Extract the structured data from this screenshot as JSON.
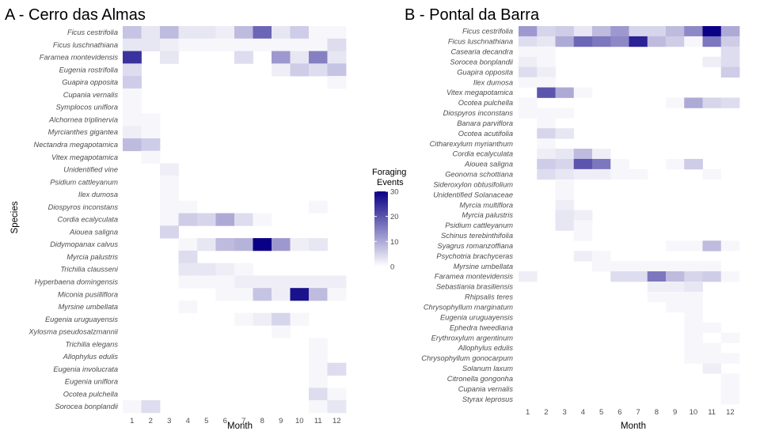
{
  "legend": {
    "title_line1": "Foraging",
    "title_line2": "Events",
    "ticks": [
      0,
      10,
      20,
      30
    ],
    "max": 30,
    "low_color": "#ffffff",
    "high_color": "#0a0085"
  },
  "chart_data": [
    {
      "type": "heatmap",
      "title": "A - Cerro das Almas",
      "xlabel": "Month",
      "ylabel": "Species",
      "x": [
        1,
        2,
        3,
        4,
        5,
        6,
        7,
        8,
        9,
        10,
        11,
        12
      ],
      "color_range": [
        0,
        30
      ],
      "rows": [
        {
          "name": "Ficus cestrifolia",
          "values": [
            7,
            3,
            8,
            3,
            3,
            2,
            8,
            18,
            3,
            6,
            1,
            1
          ]
        },
        {
          "name": "Ficus luschnathiana",
          "values": [
            3,
            3,
            2,
            1,
            1,
            1,
            1,
            1,
            1,
            1,
            1,
            4
          ]
        },
        {
          "name": "Faramea montevidensis",
          "values": [
            24,
            0,
            3,
            0,
            0,
            0,
            4,
            0,
            12,
            3,
            15,
            3
          ]
        },
        {
          "name": "Eugenia rostrifolia",
          "values": [
            4,
            0,
            0,
            0,
            0,
            0,
            0,
            0,
            2,
            6,
            4,
            7
          ]
        },
        {
          "name": "Guapira opposita",
          "values": [
            6,
            0,
            0,
            0,
            0,
            0,
            0,
            0,
            0,
            0,
            0,
            1
          ]
        },
        {
          "name": "Cupania vernalis",
          "values": [
            1,
            0,
            0,
            0,
            0,
            0,
            0,
            0,
            0,
            0,
            0,
            0
          ]
        },
        {
          "name": "Symplocos uniflora",
          "values": [
            1,
            0,
            0,
            0,
            0,
            0,
            0,
            0,
            0,
            0,
            0,
            0
          ]
        },
        {
          "name": "Alchornea triplinervia",
          "values": [
            1,
            1,
            0,
            0,
            0,
            0,
            0,
            0,
            0,
            0,
            0,
            0
          ]
        },
        {
          "name": "Myrcianthes gigantea",
          "values": [
            2,
            1,
            0,
            0,
            0,
            0,
            0,
            0,
            0,
            0,
            0,
            0
          ]
        },
        {
          "name": "Nectandra megapotamica",
          "values": [
            8,
            6,
            0,
            0,
            0,
            0,
            0,
            0,
            0,
            0,
            0,
            0
          ]
        },
        {
          "name": "Vitex megapotamica",
          "values": [
            0,
            1,
            0,
            0,
            0,
            0,
            0,
            0,
            0,
            0,
            0,
            0
          ]
        },
        {
          "name": "Unidentified vine",
          "values": [
            0,
            0,
            2,
            0,
            0,
            0,
            0,
            0,
            0,
            0,
            0,
            0
          ]
        },
        {
          "name": "Psidium cattleyanum",
          "values": [
            0,
            0,
            1,
            0,
            0,
            0,
            0,
            0,
            0,
            0,
            0,
            0
          ]
        },
        {
          "name": "Ilex dumosa",
          "values": [
            0,
            0,
            1,
            0,
            0,
            0,
            0,
            0,
            0,
            0,
            0,
            0
          ]
        },
        {
          "name": "Diospyros inconstans",
          "values": [
            0,
            0,
            1,
            1,
            0,
            0,
            0,
            0,
            0,
            0,
            1,
            0
          ]
        },
        {
          "name": "Cordia ecalyculata",
          "values": [
            0,
            0,
            1,
            6,
            5,
            10,
            4,
            1,
            0,
            0,
            0,
            0
          ]
        },
        {
          "name": "Aiouea saligna",
          "values": [
            0,
            0,
            5,
            0,
            0,
            0,
            0,
            0,
            0,
            0,
            0,
            0
          ]
        },
        {
          "name": "Didymopanax calvus",
          "values": [
            0,
            0,
            0,
            1,
            3,
            8,
            9,
            30,
            12,
            2,
            3,
            0
          ]
        },
        {
          "name": "Myrcia palustris",
          "values": [
            0,
            0,
            0,
            4,
            0,
            0,
            0,
            0,
            0,
            0,
            0,
            0
          ]
        },
        {
          "name": "Trichilia clausseni",
          "values": [
            0,
            0,
            0,
            3,
            3,
            2,
            1,
            0,
            0,
            0,
            0,
            0
          ]
        },
        {
          "name": "Hyperbaena domingensis",
          "values": [
            0,
            0,
            0,
            1,
            1,
            1,
            2,
            2,
            2,
            2,
            2,
            2
          ]
        },
        {
          "name": "Miconia pusilliflora",
          "values": [
            0,
            0,
            0,
            0,
            0,
            1,
            1,
            7,
            2,
            28,
            8,
            1
          ]
        },
        {
          "name": "Myrsine umbellata",
          "values": [
            0,
            0,
            0,
            1,
            0,
            0,
            0,
            0,
            0,
            0,
            0,
            0
          ]
        },
        {
          "name": "Eugenia uruguayensis",
          "values": [
            0,
            0,
            0,
            0,
            0,
            0,
            1,
            2,
            5,
            1,
            0,
            0
          ]
        },
        {
          "name": "Xylosma pseudosalzmannii",
          "values": [
            0,
            0,
            0,
            0,
            0,
            0,
            0,
            0,
            1,
            0,
            0,
            0
          ]
        },
        {
          "name": "Trichilia elegans",
          "values": [
            0,
            0,
            0,
            0,
            0,
            0,
            0,
            0,
            0,
            0,
            1,
            0
          ]
        },
        {
          "name": "Allophylus edulis",
          "values": [
            0,
            0,
            0,
            0,
            0,
            0,
            0,
            0,
            0,
            0,
            1,
            0
          ]
        },
        {
          "name": "Eugenia involucrata",
          "values": [
            0,
            0,
            0,
            0,
            0,
            0,
            0,
            0,
            0,
            0,
            1,
            4
          ]
        },
        {
          "name": "Eugenia uniflora",
          "values": [
            0,
            0,
            0,
            0,
            0,
            0,
            0,
            0,
            0,
            0,
            1,
            0
          ]
        },
        {
          "name": "Ocotea pulchella",
          "values": [
            0,
            0,
            0,
            0,
            0,
            0,
            0,
            0,
            0,
            0,
            4,
            1
          ]
        },
        {
          "name": "Sorocea bonplandii",
          "values": [
            1,
            4,
            0,
            0,
            0,
            0,
            0,
            0,
            0,
            0,
            1,
            3
          ]
        }
      ]
    },
    {
      "type": "heatmap",
      "title": "B - Pontal da Barra",
      "xlabel": "Month",
      "ylabel": "",
      "x": [
        1,
        2,
        3,
        4,
        5,
        6,
        7,
        8,
        9,
        10,
        11,
        12
      ],
      "color_range": [
        0,
        30
      ],
      "rows": [
        {
          "name": "Ficus cestrifolia",
          "values": [
            12,
            5,
            6,
            3,
            8,
            12,
            5,
            5,
            8,
            14,
            30,
            10
          ]
        },
        {
          "name": "Ficus luschnathiana",
          "values": [
            4,
            3,
            10,
            18,
            16,
            14,
            26,
            8,
            6,
            1,
            16,
            6
          ]
        },
        {
          "name": "Casearia decandra",
          "values": [
            1,
            1,
            0,
            0,
            0,
            0,
            0,
            0,
            0,
            0,
            0,
            4
          ]
        },
        {
          "name": "Sorocea bonplandii",
          "values": [
            2,
            1,
            0,
            0,
            0,
            0,
            0,
            0,
            0,
            0,
            2,
            4
          ]
        },
        {
          "name": "Guapira opposita",
          "values": [
            4,
            2,
            0,
            0,
            0,
            0,
            0,
            0,
            0,
            0,
            0,
            6
          ]
        },
        {
          "name": "Ilex dumosa",
          "values": [
            1,
            1,
            0,
            0,
            0,
            0,
            0,
            0,
            0,
            0,
            0,
            0
          ]
        },
        {
          "name": "Vitex megapotamica",
          "values": [
            0,
            20,
            10,
            1,
            0,
            0,
            0,
            0,
            0,
            0,
            0,
            0
          ]
        },
        {
          "name": "Ocotea pulchella",
          "values": [
            1,
            0,
            0,
            0,
            0,
            0,
            0,
            0,
            1,
            10,
            5,
            4
          ]
        },
        {
          "name": "Diospyros inconstans",
          "values": [
            1,
            1,
            1,
            0,
            0,
            0,
            0,
            0,
            0,
            0,
            0,
            0
          ]
        },
        {
          "name": "Banara parviflora",
          "values": [
            0,
            1,
            0,
            0,
            0,
            0,
            0,
            0,
            0,
            0,
            0,
            0
          ]
        },
        {
          "name": "Ocotea acutifolia",
          "values": [
            0,
            5,
            3,
            0,
            0,
            0,
            0,
            0,
            0,
            0,
            0,
            0
          ]
        },
        {
          "name": "Citharexylum myrianthum",
          "values": [
            0,
            1,
            0,
            0,
            0,
            0,
            0,
            0,
            0,
            0,
            0,
            0
          ]
        },
        {
          "name": "Cordia ecalyculata",
          "values": [
            0,
            2,
            3,
            8,
            2,
            0,
            0,
            0,
            0,
            0,
            0,
            0
          ]
        },
        {
          "name": "Aiouea saligna",
          "values": [
            0,
            6,
            5,
            20,
            16,
            1,
            0,
            0,
            1,
            6,
            0,
            0
          ]
        },
        {
          "name": "Geonoma schottiana",
          "values": [
            0,
            4,
            3,
            2,
            2,
            1,
            1,
            0,
            0,
            0,
            1,
            0
          ]
        },
        {
          "name": "Sideroxylon obtusifolium",
          "values": [
            0,
            0,
            1,
            0,
            0,
            0,
            0,
            0,
            0,
            0,
            0,
            0
          ]
        },
        {
          "name": "Unidentified Solanaceae",
          "values": [
            0,
            0,
            1,
            0,
            0,
            0,
            0,
            0,
            0,
            0,
            0,
            0
          ]
        },
        {
          "name": "Myrcia multiflora",
          "values": [
            0,
            0,
            2,
            0,
            0,
            0,
            0,
            0,
            0,
            0,
            0,
            0
          ]
        },
        {
          "name": "Myrcia palustris",
          "values": [
            0,
            0,
            3,
            2,
            0,
            0,
            0,
            0,
            0,
            0,
            0,
            0
          ]
        },
        {
          "name": "Psidium cattleyanum",
          "values": [
            0,
            0,
            3,
            1,
            0,
            0,
            0,
            0,
            0,
            0,
            0,
            0
          ]
        },
        {
          "name": "Schinus terebinthifolia",
          "values": [
            0,
            0,
            0,
            1,
            0,
            0,
            0,
            0,
            0,
            0,
            0,
            0
          ]
        },
        {
          "name": "Syagrus romanzoffiana",
          "values": [
            0,
            0,
            0,
            0,
            0,
            0,
            0,
            0,
            1,
            1,
            8,
            1
          ]
        },
        {
          "name": "Psychotria brachyceras",
          "values": [
            0,
            0,
            0,
            2,
            1,
            0,
            0,
            0,
            0,
            0,
            0,
            0
          ]
        },
        {
          "name": "Myrsine umbellata",
          "values": [
            0,
            0,
            0,
            0,
            1,
            1,
            1,
            1,
            1,
            1,
            1,
            0
          ]
        },
        {
          "name": "Faramea montevidensis",
          "values": [
            2,
            0,
            0,
            0,
            0,
            4,
            4,
            16,
            8,
            5,
            6,
            1
          ]
        },
        {
          "name": "Sebastiania brasiliensis",
          "values": [
            0,
            0,
            0,
            0,
            0,
            0,
            0,
            2,
            2,
            3,
            0,
            0
          ]
        },
        {
          "name": "Rhipsalis teres",
          "values": [
            0,
            0,
            0,
            0,
            0,
            0,
            0,
            1,
            1,
            1,
            0,
            0
          ]
        },
        {
          "name": "Chrysophyllum marginatum",
          "values": [
            0,
            0,
            0,
            0,
            0,
            0,
            0,
            0,
            1,
            1,
            0,
            0
          ]
        },
        {
          "name": "Eugenia uruguayensis",
          "values": [
            0,
            0,
            0,
            0,
            0,
            0,
            0,
            0,
            0,
            1,
            0,
            0
          ]
        },
        {
          "name": "Ephedra tweediana",
          "values": [
            0,
            0,
            0,
            0,
            0,
            0,
            0,
            0,
            0,
            1,
            1,
            0
          ]
        },
        {
          "name": "Erythroxylum argentinum",
          "values": [
            0,
            0,
            0,
            0,
            0,
            0,
            0,
            0,
            0,
            1,
            0,
            1
          ]
        },
        {
          "name": "Allophylus edulis",
          "values": [
            0,
            0,
            0,
            0,
            0,
            0,
            0,
            0,
            0,
            1,
            1,
            0
          ]
        },
        {
          "name": "Chrysophyllum gonocarpum",
          "values": [
            0,
            0,
            0,
            0,
            0,
            0,
            0,
            0,
            0,
            1,
            1,
            1
          ]
        },
        {
          "name": "Solanum laxum",
          "values": [
            0,
            0,
            0,
            0,
            0,
            0,
            0,
            0,
            0,
            0,
            2,
            0
          ]
        },
        {
          "name": "Citronella gongonha",
          "values": [
            0,
            0,
            0,
            0,
            0,
            0,
            0,
            0,
            0,
            0,
            0,
            1
          ]
        },
        {
          "name": "Cupania vernalis",
          "values": [
            0,
            0,
            0,
            0,
            0,
            0,
            0,
            0,
            0,
            0,
            0,
            1
          ]
        },
        {
          "name": "Styrax leprosus",
          "values": [
            0,
            0,
            0,
            0,
            0,
            0,
            0,
            0,
            0,
            0,
            0,
            1
          ]
        }
      ]
    }
  ]
}
